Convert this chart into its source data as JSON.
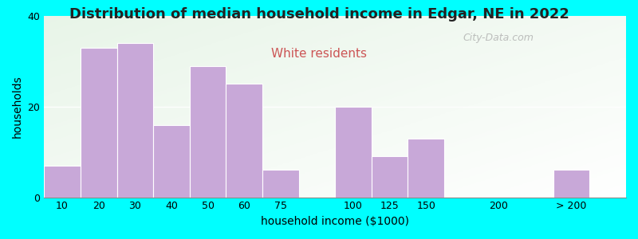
{
  "title": "Distribution of median household income in Edgar, NE in 2022",
  "subtitle": "White residents",
  "xlabel": "household income ($1000)",
  "ylabel": "households",
  "background_color": "#00FFFF",
  "bar_color": "#c8a8d8",
  "bar_edge_color": "#ffffff",
  "categories": [
    "10",
    "20",
    "30",
    "40",
    "50",
    "60",
    "75",
    "100",
    "125",
    "150",
    "200",
    "> 200"
  ],
  "values": [
    7,
    33,
    34,
    16,
    29,
    25,
    6,
    20,
    9,
    13,
    0,
    6
  ],
  "bar_lefts": [
    0,
    1,
    2,
    3,
    4,
    5,
    6,
    8,
    9,
    10,
    12,
    14
  ],
  "bar_widths": [
    1,
    1,
    1,
    1,
    1,
    1,
    1,
    1,
    1,
    1,
    1,
    1
  ],
  "tick_positions": [
    0.5,
    1.5,
    2.5,
    3.5,
    4.5,
    5.5,
    6.5,
    8.5,
    9.5,
    10.5,
    12.5,
    14.5
  ],
  "xlim": [
    0,
    16
  ],
  "ylim": [
    0,
    40
  ],
  "yticks": [
    0,
    20,
    40
  ],
  "title_fontsize": 13,
  "subtitle_fontsize": 11,
  "subtitle_color": "#cc5555",
  "axis_label_fontsize": 10,
  "tick_fontsize": 9,
  "watermark_text": "City-Data.com",
  "watermark_color": "#aaaaaa",
  "title_color": "#222222"
}
